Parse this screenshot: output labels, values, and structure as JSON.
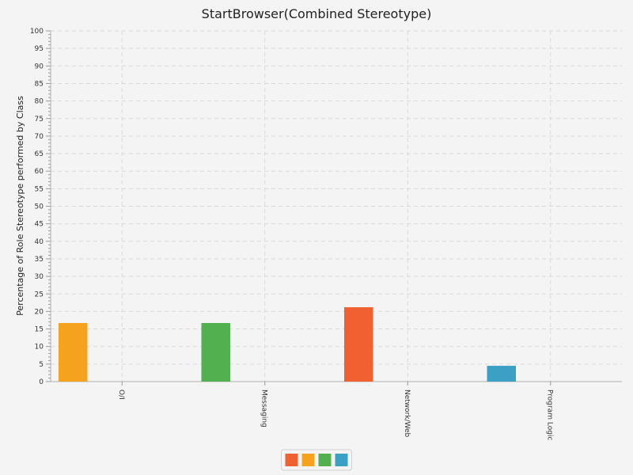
{
  "chart_data": {
    "type": "bar",
    "title": "StartBrowser(Combined Stereotype)",
    "xlabel": "",
    "ylabel": "Percentage of Role Stereotype performed by Class",
    "ylim": [
      0,
      100
    ],
    "y_major_step": 5,
    "y_minor_step": 1,
    "categories": [
      "O/I",
      "Messaging",
      "Network/Web",
      "Program Logic"
    ],
    "grid": true,
    "legend_position": "bottom",
    "series": [
      {
        "color": "#f06030",
        "values": [
          0,
          0,
          21.2,
          0
        ]
      },
      {
        "color": "#f5a21f",
        "values": [
          16.7,
          0,
          0,
          0
        ]
      },
      {
        "color": "#52b04f",
        "values": [
          0,
          16.7,
          0,
          0
        ]
      },
      {
        "color": "#3ba0c4",
        "values": [
          0,
          0,
          0,
          4.5
        ]
      }
    ]
  }
}
